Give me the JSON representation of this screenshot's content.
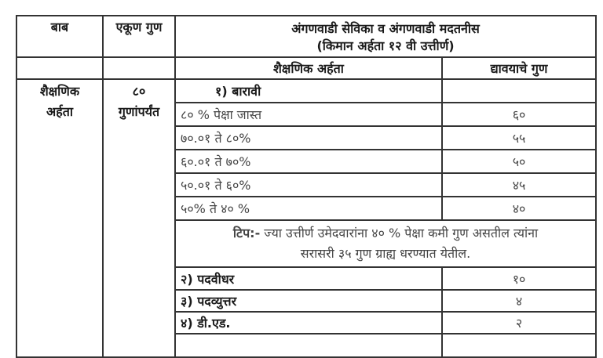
{
  "header": {
    "col_subject": "बाब",
    "col_total_marks": "एकूण गुण",
    "post_title": "अंगणवाडी सेविका व अंगणवाडी मदतनीस",
    "min_qualification": "(किमान अर्हता १२ वी उत्तीर्ण)",
    "col_edu_qualification": "शैक्षणिक अर्हता",
    "col_marks_given": "द्यावयाचे गुण"
  },
  "section": {
    "subject_line1": "शैक्षणिक",
    "subject_line2": "अर्हता",
    "total_line1": "८०",
    "total_line2": "गुणांपर्यंत"
  },
  "twelfth": {
    "label": "१)  बारावी",
    "rows": [
      {
        "range": "८० % पेक्षा जास्त",
        "marks": "६०"
      },
      {
        "range": "७०.०१ ते ८०%",
        "marks": "५५"
      },
      {
        "range": "६०.०१ ते ७०%",
        "marks": "५०"
      },
      {
        "range": "५०.०१ ते ६०%",
        "marks": "४५"
      },
      {
        "range": "५०% ते ४० %",
        "marks": "४०"
      }
    ]
  },
  "note": {
    "prefix": "टिप:-",
    "line1": " ज्या उत्तीर्ण उमेदवारांना ४० % पेक्षा कमी गुण असतील त्यांना",
    "line2": "सरासरी ३५ गुण ग्राह्य धरण्यात येतील."
  },
  "others": [
    {
      "label": "२)  पदवीधर",
      "marks": "१०"
    },
    {
      "label": "३)  पदव्युत्तर",
      "marks": "४"
    },
    {
      "label": "४)  डी.एड.",
      "marks": "२"
    }
  ]
}
